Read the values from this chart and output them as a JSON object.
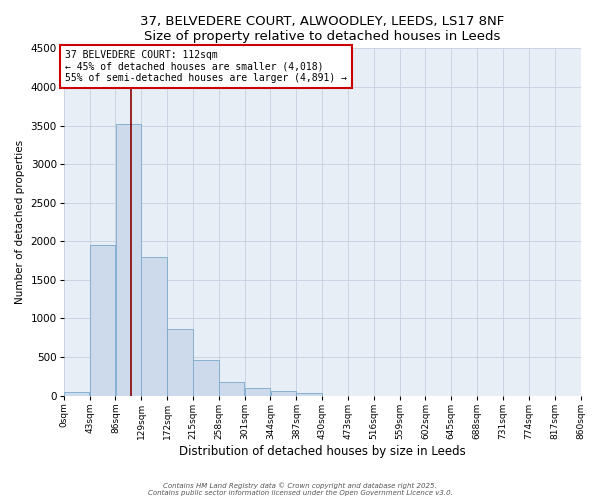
{
  "title": "37, BELVEDERE COURT, ALWOODLEY, LEEDS, LS17 8NF",
  "subtitle": "Size of property relative to detached houses in Leeds",
  "xlabel": "Distribution of detached houses by size in Leeds",
  "ylabel": "Number of detached properties",
  "bar_color": "#ccdaeb",
  "bar_edge_color": "#7aa8cc",
  "plot_bg_color": "#e8eef5",
  "grid_color": "#c5d0df",
  "bin_labels": [
    "0sqm",
    "43sqm",
    "86sqm",
    "129sqm",
    "172sqm",
    "215sqm",
    "258sqm",
    "301sqm",
    "344sqm",
    "387sqm",
    "430sqm",
    "473sqm",
    "516sqm",
    "559sqm",
    "602sqm",
    "645sqm",
    "688sqm",
    "731sqm",
    "774sqm",
    "817sqm",
    "860sqm"
  ],
  "bin_edges": [
    0,
    43,
    86,
    129,
    172,
    215,
    258,
    301,
    344,
    387,
    430,
    473,
    516,
    559,
    602,
    645,
    688,
    731,
    774,
    817,
    860
  ],
  "bar_heights": [
    50,
    1950,
    3520,
    1800,
    860,
    460,
    175,
    95,
    55,
    30,
    0,
    0,
    0,
    0,
    0,
    0,
    0,
    0,
    0,
    0
  ],
  "property_size": 112,
  "property_line_color": "#8b0000",
  "annotation_title": "37 BELVEDERE COURT: 112sqm",
  "annotation_line1": "← 45% of detached houses are smaller (4,018)",
  "annotation_line2": "55% of semi-detached houses are larger (4,891) →",
  "annotation_box_facecolor": "#ffffff",
  "annotation_box_edgecolor": "#cc0000",
  "ylim": [
    0,
    4500
  ],
  "yticks": [
    0,
    500,
    1000,
    1500,
    2000,
    2500,
    3000,
    3500,
    4000,
    4500
  ],
  "footnote1": "Contains HM Land Registry data © Crown copyright and database right 2025.",
  "footnote2": "Contains public sector information licensed under the Open Government Licence v3.0."
}
